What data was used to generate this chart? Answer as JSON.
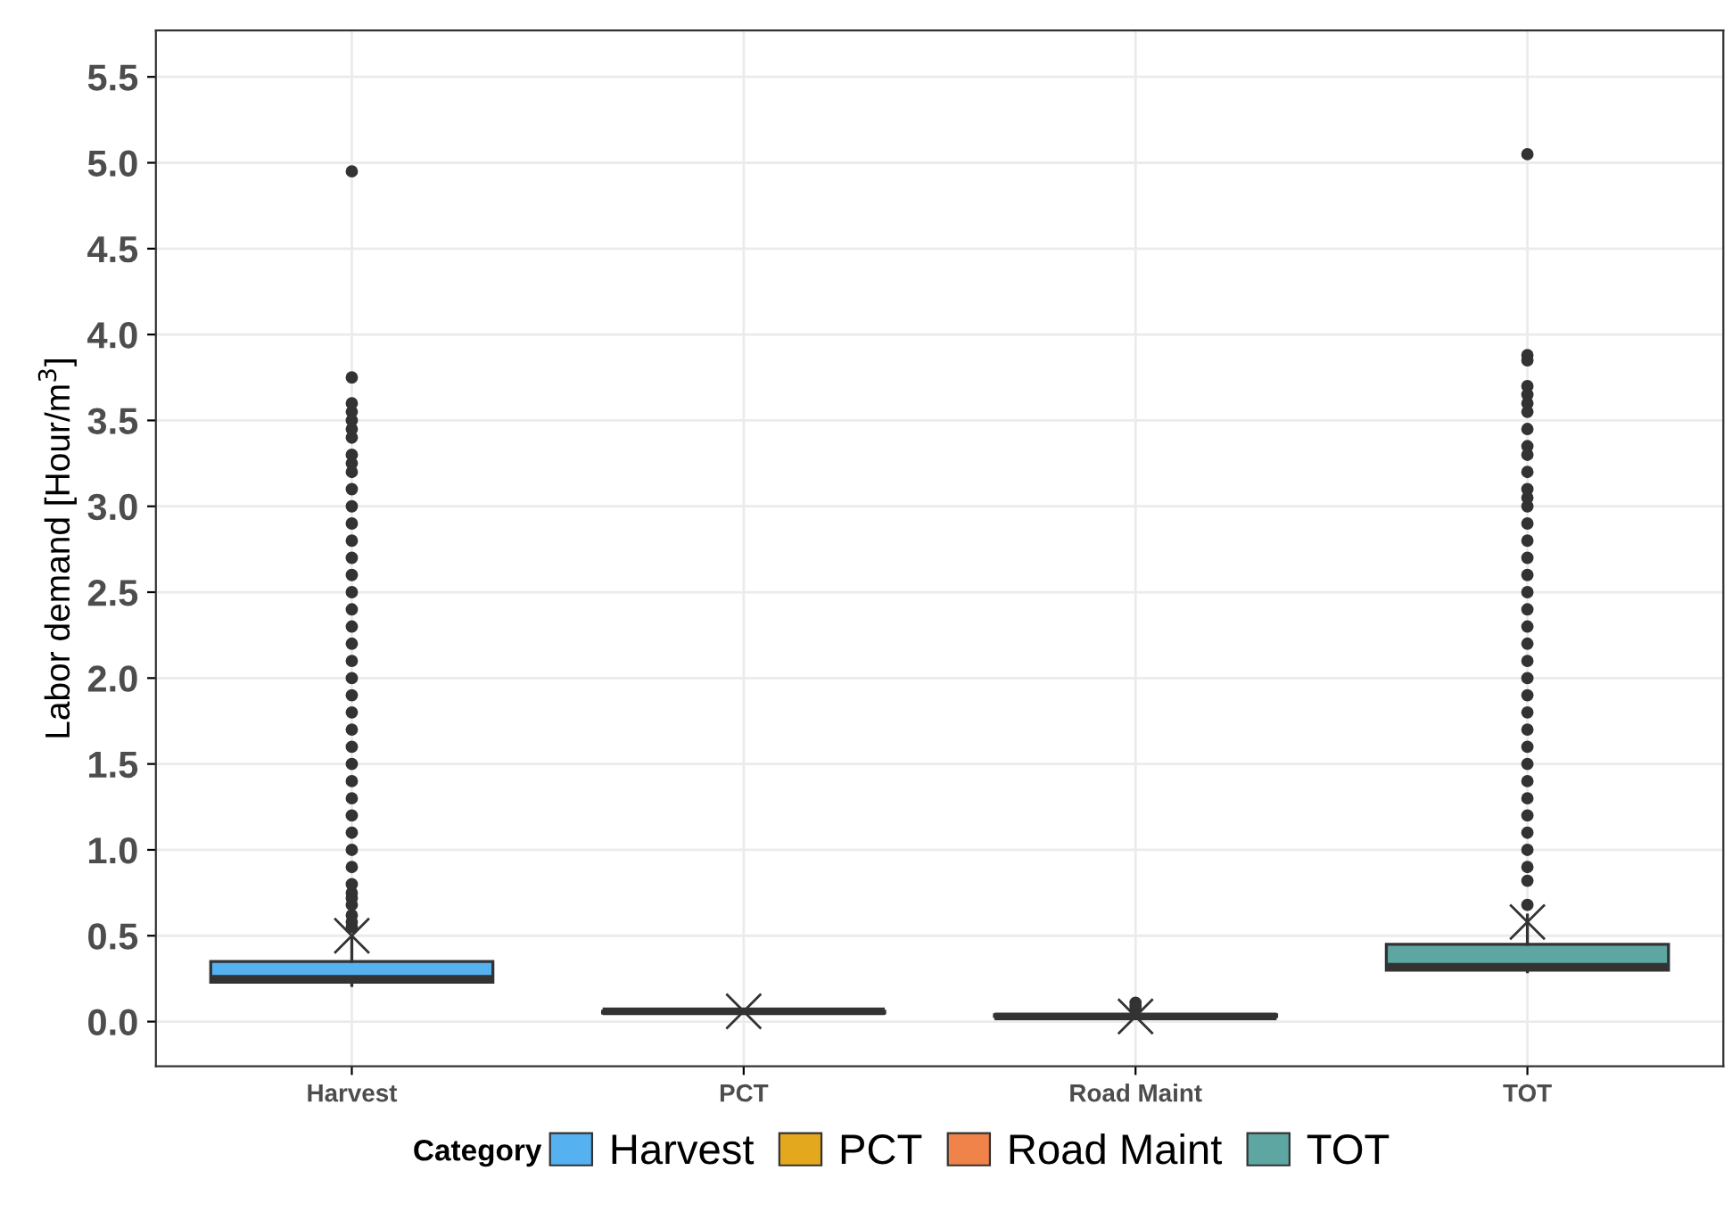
{
  "chart_data": {
    "type": "box",
    "ylabel": "Labor demand [Hour/m$^{3}$]",
    "legend_title": "Category",
    "legend": "bottom",
    "grid": true,
    "categories": [
      "Harvest",
      "PCT",
      "Road Maint",
      "TOT"
    ],
    "ylim": [
      -0.26,
      5.77
    ],
    "yticks": [
      {
        "value": 0,
        "label": "0.0"
      },
      {
        "value": 0.5,
        "label": "0.5"
      },
      {
        "value": 1,
        "label": "1.0"
      },
      {
        "value": 1.5,
        "label": "1.5"
      },
      {
        "value": 2,
        "label": "2.0"
      },
      {
        "value": 2.5,
        "label": "2.5"
      },
      {
        "value": 3,
        "label": "3.0"
      },
      {
        "value": 3.5,
        "label": "3.5"
      },
      {
        "value": 4,
        "label": "4.0"
      },
      {
        "value": 4.5,
        "label": "4.5"
      },
      {
        "value": 5,
        "label": "5.0"
      },
      {
        "value": 5.5,
        "label": "5.5"
      }
    ],
    "series": [
      {
        "name": "Harvest",
        "color": "#56b1f0",
        "boxes": [
          {
            "low": 0.21,
            "q1": 0.23,
            "median": 0.25,
            "q3": 0.35,
            "high": 0.5,
            "mean": 0.5,
            "outliers": [
              0.55,
              0.58,
              0.62,
              0.68,
              0.72,
              0.75,
              0.8,
              0.9,
              1.0,
              1.1,
              1.2,
              1.3,
              1.4,
              1.5,
              1.6,
              1.7,
              1.8,
              1.9,
              2.0,
              2.1,
              2.2,
              2.3,
              2.4,
              2.5,
              2.6,
              2.7,
              2.8,
              2.9,
              3.0,
              3.1,
              3.2,
              3.25,
              3.3,
              3.4,
              3.45,
              3.5,
              3.55,
              3.6,
              3.75,
              4.95
            ]
          },
          null,
          null,
          null
        ]
      },
      {
        "name": "PCT",
        "color": "#e3a81e",
        "boxes": [
          null,
          {
            "low": 0.05,
            "q1": 0.05,
            "median": 0.06,
            "q3": 0.06,
            "high": 0.06,
            "mean": 0.06
          },
          null,
          null
        ]
      },
      {
        "name": "Road Maint",
        "color": "#f0834a",
        "boxes": [
          null,
          null,
          {
            "low": 0.03,
            "q1": 0.03,
            "median": 0.03,
            "q3": 0.04,
            "high": 0.05,
            "mean": 0.03,
            "outliers": [
              0.07,
              0.09,
              0.11
            ]
          },
          null
        ]
      },
      {
        "name": "TOT",
        "color": "#5ea6a2",
        "boxes": [
          null,
          null,
          null,
          {
            "low": 0.29,
            "q1": 0.3,
            "median": 0.32,
            "q3": 0.45,
            "high": 0.62,
            "mean": 0.58,
            "outliers": [
              0.68,
              0.82,
              0.9,
              1.0,
              1.1,
              1.2,
              1.3,
              1.4,
              1.5,
              1.6,
              1.7,
              1.8,
              1.9,
              2.0,
              2.1,
              2.2,
              2.3,
              2.4,
              2.5,
              2.6,
              2.7,
              2.8,
              2.9,
              3.0,
              3.05,
              3.1,
              3.2,
              3.3,
              3.35,
              3.45,
              3.55,
              3.6,
              3.65,
              3.7,
              3.85,
              3.88,
              5.05
            ]
          }
        ]
      }
    ]
  }
}
